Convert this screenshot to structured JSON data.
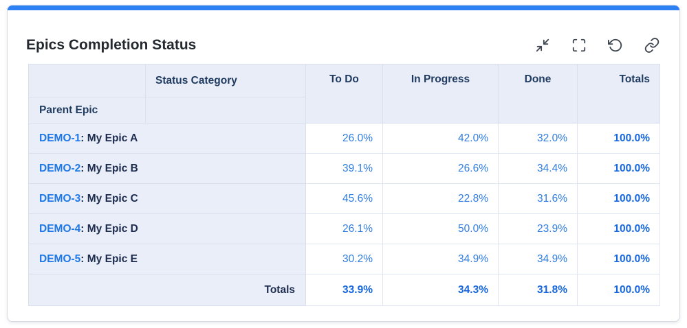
{
  "card": {
    "title": "Epics Completion Status",
    "toolbar": {
      "collapse_icon": "collapse-inward-arrows",
      "fullscreen_icon": "fullscreen-corner-brackets",
      "reset_icon": "reset-circular-arrow",
      "link_icon": "chain-link"
    }
  },
  "table": {
    "column_dimension_label": "Status Category",
    "row_dimension_label": "Parent Epic",
    "columns": [
      "To Do",
      "In Progress",
      "Done",
      "Totals"
    ],
    "rows": [
      {
        "key": "DEMO-1",
        "suffix": ": My Epic A",
        "values": [
          "26.0%",
          "42.0%",
          "32.0%",
          "100.0%"
        ]
      },
      {
        "key": "DEMO-2",
        "suffix": ": My Epic B",
        "values": [
          "39.1%",
          "26.6%",
          "34.4%",
          "100.0%"
        ]
      },
      {
        "key": "DEMO-3",
        "suffix": ": My Epic C",
        "values": [
          "45.6%",
          "22.8%",
          "31.6%",
          "100.0%"
        ]
      },
      {
        "key": "DEMO-4",
        "suffix": ": My Epic D",
        "values": [
          "26.1%",
          "50.0%",
          "23.9%",
          "100.0%"
        ]
      },
      {
        "key": "DEMO-5",
        "suffix": ": My Epic E",
        "values": [
          "30.2%",
          "34.9%",
          "34.9%",
          "100.0%"
        ]
      }
    ],
    "totals": {
      "label": "Totals",
      "values": [
        "33.9%",
        "34.3%",
        "31.8%",
        "100.0%"
      ]
    }
  },
  "colors": {
    "accent_bar": "#2e80f5",
    "link_blue": "#1e78e8",
    "value_blue": "#2e7ce2",
    "totals_blue": "#1667dd",
    "header_navy": "#1f3a5f",
    "header_bg": "#e9edf8",
    "row_label_bg": "#e9eef8",
    "border": "#d9dfec"
  }
}
